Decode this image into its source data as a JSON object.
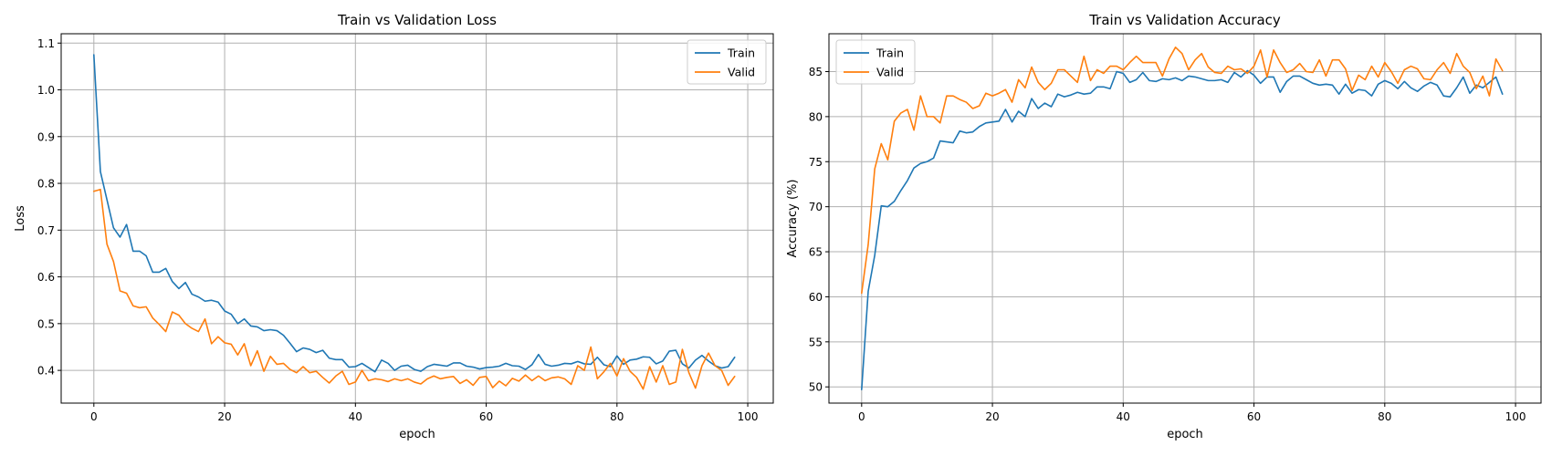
{
  "chart_data": [
    {
      "type": "line",
      "title": "Train vs Validation Loss",
      "xlabel": "epoch",
      "ylabel": "Loss",
      "xlim": [
        -5,
        103.9
      ],
      "ylim": [
        0.33,
        1.12
      ],
      "xticks": [
        0,
        20,
        40,
        60,
        80,
        100
      ],
      "yticks": [
        0.4,
        0.5,
        0.6,
        0.7,
        0.8,
        0.9,
        1.0,
        1.1
      ],
      "ytick_labels": [
        "0.4",
        "0.5",
        "0.6",
        "0.7",
        "0.8",
        "0.9",
        "1.0",
        "1.1"
      ],
      "grid": true,
      "legend_position": "top-right",
      "series": [
        {
          "name": "Train",
          "color": "#1f77b4",
          "values": [
            1.075,
            0.825,
            0.765,
            0.705,
            0.685,
            0.712,
            0.655,
            0.655,
            0.645,
            0.61,
            0.61,
            0.618,
            0.59,
            0.575,
            0.588,
            0.563,
            0.557,
            0.548,
            0.55,
            0.546,
            0.527,
            0.52,
            0.5,
            0.51,
            0.495,
            0.493,
            0.485,
            0.487,
            0.485,
            0.475,
            0.458,
            0.44,
            0.448,
            0.445,
            0.438,
            0.443,
            0.426,
            0.423,
            0.423,
            0.407,
            0.408,
            0.415,
            0.406,
            0.397,
            0.422,
            0.415,
            0.4,
            0.409,
            0.411,
            0.402,
            0.398,
            0.408,
            0.413,
            0.411,
            0.409,
            0.416,
            0.416,
            0.409,
            0.407,
            0.403,
            0.406,
            0.407,
            0.409,
            0.415,
            0.41,
            0.409,
            0.402,
            0.412,
            0.434,
            0.413,
            0.409,
            0.411,
            0.415,
            0.414,
            0.419,
            0.414,
            0.413,
            0.428,
            0.412,
            0.408,
            0.431,
            0.413,
            0.422,
            0.424,
            0.429,
            0.428,
            0.414,
            0.42,
            0.441,
            0.443,
            0.414,
            0.405,
            0.422,
            0.432,
            0.42,
            0.41,
            0.405,
            0.408,
            0.428
          ]
        },
        {
          "name": "Valid",
          "color": "#ff7f0e",
          "values": [
            0.783,
            0.787,
            0.67,
            0.633,
            0.57,
            0.565,
            0.538,
            0.534,
            0.536,
            0.512,
            0.498,
            0.483,
            0.525,
            0.518,
            0.5,
            0.49,
            0.483,
            0.51,
            0.457,
            0.472,
            0.459,
            0.456,
            0.433,
            0.457,
            0.41,
            0.442,
            0.398,
            0.43,
            0.413,
            0.415,
            0.402,
            0.395,
            0.408,
            0.395,
            0.398,
            0.385,
            0.373,
            0.388,
            0.398,
            0.37,
            0.375,
            0.4,
            0.378,
            0.382,
            0.38,
            0.376,
            0.382,
            0.378,
            0.382,
            0.375,
            0.371,
            0.382,
            0.388,
            0.382,
            0.385,
            0.387,
            0.372,
            0.38,
            0.368,
            0.385,
            0.387,
            0.363,
            0.377,
            0.367,
            0.383,
            0.377,
            0.39,
            0.378,
            0.388,
            0.378,
            0.384,
            0.386,
            0.382,
            0.37,
            0.41,
            0.4,
            0.45,
            0.382,
            0.397,
            0.415,
            0.388,
            0.425,
            0.398,
            0.385,
            0.36,
            0.408,
            0.375,
            0.41,
            0.37,
            0.375,
            0.445,
            0.395,
            0.362,
            0.41,
            0.437,
            0.41,
            0.4,
            0.368,
            0.387
          ]
        }
      ]
    },
    {
      "type": "line",
      "title": "Train vs Validation Accuracy",
      "xlabel": "epoch",
      "ylabel": "Accuracy (%)",
      "xlim": [
        -5,
        103.9
      ],
      "ylim": [
        48.2,
        89.2
      ],
      "xticks": [
        0,
        20,
        40,
        60,
        80,
        100
      ],
      "yticks": [
        50,
        55,
        60,
        65,
        70,
        75,
        80,
        85
      ],
      "ytick_labels": [
        "50",
        "55",
        "60",
        "65",
        "70",
        "75",
        "80",
        "85"
      ],
      "grid": true,
      "legend_position": "top-left",
      "series": [
        {
          "name": "Train",
          "color": "#1f77b4",
          "values": [
            49.7,
            60.6,
            64.6,
            70.1,
            70.0,
            70.6,
            71.8,
            72.9,
            74.3,
            74.8,
            75.0,
            75.4,
            77.3,
            77.2,
            77.1,
            78.4,
            78.2,
            78.3,
            78.9,
            79.3,
            79.4,
            79.5,
            80.8,
            79.4,
            80.6,
            80.0,
            82.0,
            80.9,
            81.5,
            81.1,
            82.5,
            82.2,
            82.4,
            82.7,
            82.5,
            82.6,
            83.3,
            83.3,
            83.1,
            85.0,
            84.8,
            83.8,
            84.1,
            84.9,
            84.0,
            83.9,
            84.2,
            84.1,
            84.3,
            84.0,
            84.5,
            84.4,
            84.2,
            84.0,
            84.0,
            84.1,
            83.8,
            84.9,
            84.4,
            85.1,
            84.6,
            83.7,
            84.4,
            84.4,
            82.7,
            83.9,
            84.5,
            84.5,
            84.1,
            83.7,
            83.5,
            83.6,
            83.5,
            82.5,
            83.6,
            82.6,
            83.0,
            82.9,
            82.3,
            83.6,
            84.0,
            83.7,
            83.1,
            83.9,
            83.2,
            82.8,
            83.4,
            83.8,
            83.5,
            82.3,
            82.2,
            83.2,
            84.4,
            82.6,
            83.5,
            83.2,
            83.8,
            84.4,
            82.5
          ]
        },
        {
          "name": "Valid",
          "color": "#ff7f0e",
          "values": [
            60.4,
            65.8,
            74.2,
            77.0,
            75.2,
            79.5,
            80.4,
            80.8,
            78.5,
            82.3,
            80.0,
            80.0,
            79.3,
            82.3,
            82.3,
            81.9,
            81.6,
            80.9,
            81.2,
            82.6,
            82.3,
            82.6,
            83.0,
            81.6,
            84.1,
            83.2,
            85.5,
            83.8,
            83.0,
            83.7,
            85.2,
            85.2,
            84.5,
            83.8,
            86.7,
            84.0,
            85.2,
            84.8,
            85.6,
            85.6,
            85.2,
            86.0,
            86.7,
            86.0,
            86.0,
            86.0,
            84.5,
            86.4,
            87.7,
            87.0,
            85.2,
            86.3,
            87.0,
            85.5,
            84.9,
            84.8,
            85.6,
            85.2,
            85.3,
            84.8,
            85.6,
            87.4,
            84.4,
            87.4,
            86.0,
            84.9,
            85.2,
            85.9,
            85.0,
            84.9,
            86.3,
            84.5,
            86.3,
            86.3,
            85.3,
            82.9,
            84.6,
            84.1,
            85.6,
            84.4,
            86.0,
            85.0,
            83.7,
            85.2,
            85.6,
            85.3,
            84.2,
            84.1,
            85.2,
            86.0,
            84.8,
            87.0,
            85.6,
            84.9,
            83.1,
            84.5,
            82.3,
            86.4,
            85.1
          ]
        }
      ]
    }
  ]
}
